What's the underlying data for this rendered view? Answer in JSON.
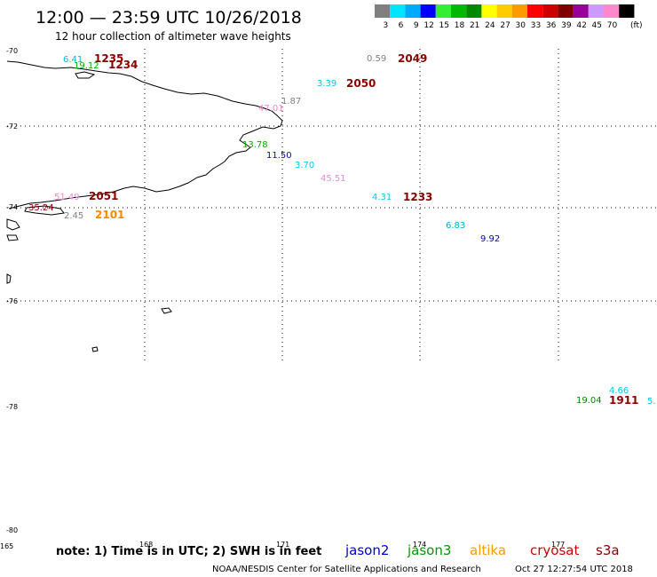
{
  "header": {
    "title": "12:00 — 23:59 UTC 10/26/2018",
    "subtitle": "12 hour collection of altimeter wave heights"
  },
  "legend": {
    "unit": "(ft)",
    "bins": [
      {
        "label": "3",
        "color": "#808080"
      },
      {
        "label": "6",
        "color": "#00e5ff"
      },
      {
        "label": "9",
        "color": "#00aaff"
      },
      {
        "label": "12",
        "color": "#0000ff"
      },
      {
        "label": "15",
        "color": "#33ee33"
      },
      {
        "label": "18",
        "color": "#00b800"
      },
      {
        "label": "21",
        "color": "#008800"
      },
      {
        "label": "24",
        "color": "#ffff00"
      },
      {
        "label": "27",
        "color": "#ffcc00"
      },
      {
        "label": "30",
        "color": "#ff9900"
      },
      {
        "label": "33",
        "color": "#ff0000"
      },
      {
        "label": "36",
        "color": "#cc0000"
      },
      {
        "label": "39",
        "color": "#800000"
      },
      {
        "label": "42",
        "color": "#990099"
      },
      {
        "label": "45",
        "color": "#cc99ff"
      },
      {
        "label": "70",
        "color": "#ff88cc"
      },
      {
        "label": "",
        "color": "#000000"
      }
    ]
  },
  "axes": {
    "lat_labels": [
      "-70",
      "-72",
      "-74",
      "-76",
      "-78",
      "-80"
    ],
    "lon_labels": [
      "165",
      "168",
      "171",
      "174",
      "177"
    ]
  },
  "observations": [
    {
      "value": "6.41",
      "color": "#00bbdd"
    },
    {
      "value": "19.12",
      "color": "#00aa00"
    },
    {
      "value": "0.59",
      "color": "#808080"
    },
    {
      "value": "3.39",
      "color": "#00ccee"
    },
    {
      "value": "1.87",
      "color": "#808080"
    },
    {
      "value": "47.01",
      "color": "#ee88dd"
    },
    {
      "value": "13.78",
      "color": "#00aa00"
    },
    {
      "value": "11.50",
      "color": "#0000cc"
    },
    {
      "value": "3.70",
      "color": "#00ccee"
    },
    {
      "value": "45.51",
      "color": "#ee88dd"
    },
    {
      "value": "4.31",
      "color": "#00ccee"
    },
    {
      "value": "51.49",
      "color": "#ee88dd"
    },
    {
      "value": "35.24",
      "color": "#880000"
    },
    {
      "value": "2.45",
      "color": "#808080"
    },
    {
      "value": "6.83",
      "color": "#00aadd"
    },
    {
      "value": "9.92",
      "color": "#0000cc"
    },
    {
      "value": "4.66",
      "color": "#00ccee"
    },
    {
      "value": "19.04",
      "color": "#008800"
    },
    {
      "value": "5.",
      "color": "#00ccee"
    }
  ],
  "pass_times": [
    {
      "value": "1235",
      "color": "#880000"
    },
    {
      "value": "1234",
      "color": "#880000"
    },
    {
      "value": "2049",
      "color": "#880000"
    },
    {
      "value": "2050",
      "color": "#880000"
    },
    {
      "value": "2051",
      "color": "#880000"
    },
    {
      "value": "1233",
      "color": "#880000"
    },
    {
      "value": "2101",
      "color": "#ff8800"
    },
    {
      "value": "1911",
      "color": "#880000"
    }
  ],
  "footer": {
    "note": "note: 1) Time is in UTC; 2) SWH is in feet",
    "satellites": [
      {
        "name": "jason2",
        "color": "#0000cc"
      },
      {
        "name": "jason3",
        "color": "#009900"
      },
      {
        "name": "altika",
        "color": "#ff9900"
      },
      {
        "name": "cryosat",
        "color": "#cc0000"
      },
      {
        "name": "s3a",
        "color": "#880000"
      }
    ],
    "credit": "NOAA/NESDIS Center for Satellite Applications and Research",
    "generated": "Oct 27 12:27:54 UTC 2018"
  }
}
